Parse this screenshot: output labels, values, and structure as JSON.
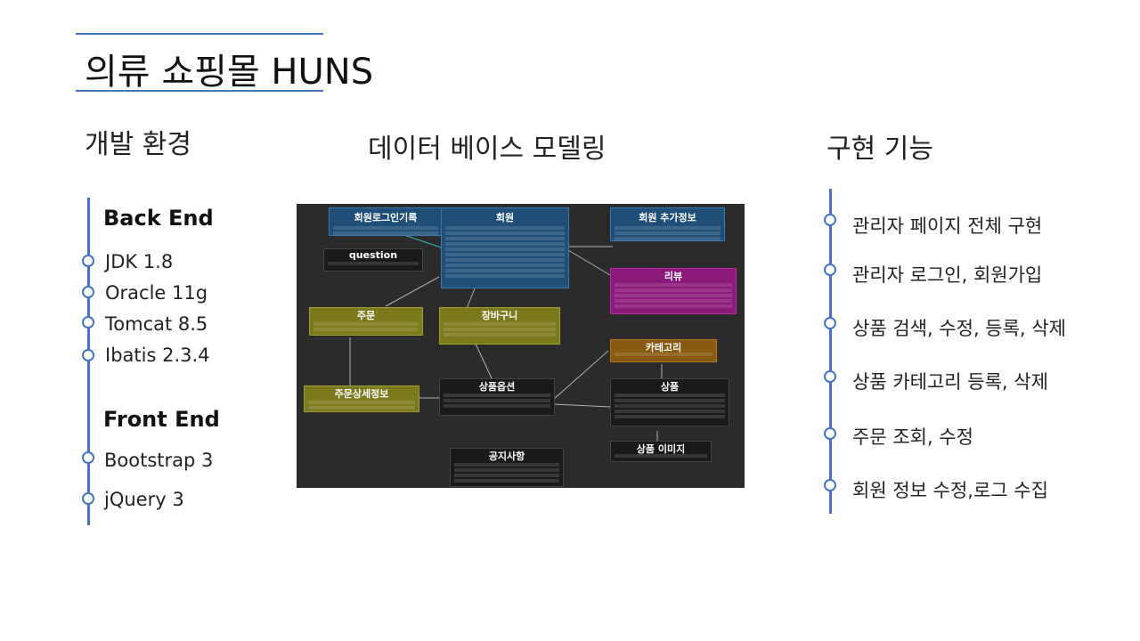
{
  "title": "의류 쇼핑몰 HUNS",
  "sections": {
    "env": "개발 환경",
    "db": "데이터 베이스 모델링",
    "features": "구현 기능"
  },
  "env": {
    "backend_head": "Back End",
    "backend": [
      "JDK 1.8",
      "Oracle 11g",
      "Tomcat 8.5",
      "Ibatis 2.3.4"
    ],
    "frontend_head": "Front End",
    "frontend": [
      "Bootstrap 3",
      "jQuery 3"
    ]
  },
  "features": [
    "관리자 페이지 전체 구현",
    "관리자 로그인, 회원가입",
    "상품 검색, 수정, 등록, 삭제",
    "상품 카테고리 등록, 삭제",
    "주문 조회, 수정",
    "회원 정보 수정,로그 수집"
  ],
  "erd": {
    "tables": {
      "member_login_log": "회원로그인기록",
      "member": "회원",
      "member_extra": "회원 추가정보",
      "question": "question",
      "review": "리뷰",
      "order": "주문",
      "cart": "장바구니",
      "category": "카테고리",
      "order_detail": "주문상세정보",
      "product_option": "상품옵션",
      "product": "상품",
      "product_image": "상품 이미지",
      "notice": "공지사항"
    },
    "colors": {
      "blue": "#1f4f78",
      "olive": "#7b7a1c",
      "magenta": "#8b1a7a",
      "orange": "#8a5a12",
      "dark": "#1a1a1a",
      "accent": "#4472c4"
    }
  }
}
